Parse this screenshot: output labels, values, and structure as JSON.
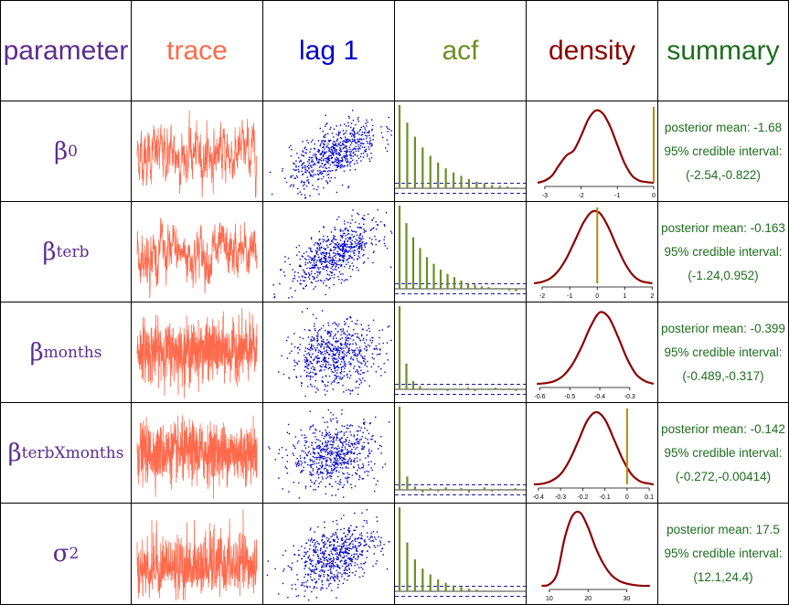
{
  "headers": {
    "parameter": "parameter",
    "trace": "trace",
    "lag": "lag 1",
    "acf": "acf",
    "density": "density",
    "summary": "summary"
  },
  "colors": {
    "parameter": "#5b2c8f",
    "trace": "#ff6a4d",
    "lag": "#0000cc",
    "acf": "#6b8e23",
    "density": "#8b0000",
    "summary": "#1c6e1c",
    "marker": "#b8860b"
  },
  "rows": [
    {
      "symbol": "β",
      "sub": "0",
      "sup": "",
      "mean_label": "posterior mean: -1.68",
      "ci_label": "95% credible interval:",
      "ci_values": "(-2.54,-0.822)"
    },
    {
      "symbol": "β",
      "sub": "terb",
      "sup": "",
      "mean_label": "posterior mean: -0.163",
      "ci_label": "95% credible interval:",
      "ci_values": "(-1.24,0.952)"
    },
    {
      "symbol": "β",
      "sub": "months",
      "sup": "",
      "mean_label": "posterior mean: -0.399",
      "ci_label": "95% credible interval:",
      "ci_values": "(-0.489,-0.317)"
    },
    {
      "symbol": "β",
      "sub": "terbXmonths",
      "sup": "",
      "mean_label": "posterior mean: -0.142",
      "ci_label": "95% credible interval:",
      "ci_values": "(-0.272,-0.00414)"
    },
    {
      "symbol": "σ",
      "sub": "",
      "sup": "2",
      "mean_label": "posterior mean: 17.5",
      "ci_label": "95% credible interval:",
      "ci_values": "(12.1,24.4)"
    }
  ],
  "chart_data": [
    {
      "type": "line",
      "panel": "trace",
      "param": "beta0",
      "trace_style": "dense noisy chain",
      "mean": -1.68,
      "ylim": [
        -3.2,
        0
      ]
    },
    {
      "type": "line",
      "panel": "trace",
      "param": "beta_terb",
      "trace_style": "dense noisy chain",
      "mean": -0.163,
      "ylim": [
        -2.2,
        2
      ]
    },
    {
      "type": "line",
      "panel": "trace",
      "param": "beta_months",
      "trace_style": "dense noisy chain",
      "mean": -0.399,
      "ylim": [
        -0.62,
        -0.2
      ]
    },
    {
      "type": "line",
      "panel": "trace",
      "param": "beta_terbXmonths",
      "trace_style": "dense noisy chain",
      "mean": -0.142,
      "ylim": [
        -0.42,
        0.12
      ]
    },
    {
      "type": "line",
      "panel": "trace",
      "param": "sigma2",
      "trace_style": "dense noisy chain",
      "mean": 17.5,
      "ylim": [
        8,
        36
      ]
    },
    {
      "type": "scatter",
      "panel": "lag 1",
      "param": "beta0",
      "correlation": 0.62
    },
    {
      "type": "scatter",
      "panel": "lag 1",
      "param": "beta_terb",
      "correlation": 0.62
    },
    {
      "type": "scatter",
      "panel": "lag 1",
      "param": "beta_months",
      "correlation": 0.15
    },
    {
      "type": "scatter",
      "panel": "lag 1",
      "param": "beta_terbXmonths",
      "correlation": 0.12
    },
    {
      "type": "scatter",
      "panel": "lag 1",
      "param": "sigma2",
      "correlation": 0.45
    },
    {
      "type": "bar",
      "panel": "acf",
      "param": "beta0",
      "values": [
        1,
        0.79,
        0.62,
        0.49,
        0.39,
        0.31,
        0.24,
        0.19,
        0.15,
        0.11,
        0.08,
        0.06,
        0.04,
        0.03,
        0.02,
        0.01
      ],
      "band": 0.06
    },
    {
      "type": "bar",
      "panel": "acf",
      "param": "beta_terb",
      "values": [
        1,
        0.79,
        0.62,
        0.49,
        0.38,
        0.3,
        0.23,
        0.18,
        0.14,
        0.1,
        0.07,
        0.05,
        0.03,
        0.02,
        0.01,
        -0.01,
        -0.02,
        -0.03
      ],
      "band": 0.06
    },
    {
      "type": "bar",
      "panel": "acf",
      "param": "beta_months",
      "values": [
        1,
        0.31,
        0.1,
        0.04,
        0.01,
        -0.01,
        0.01,
        -0.02,
        0.01,
        -0.01,
        0.02,
        -0.02,
        0.01,
        -0.01,
        0.02,
        -0.01,
        0.01,
        -0.02
      ],
      "band": 0.06
    },
    {
      "type": "bar",
      "panel": "acf",
      "param": "beta_terbXmonths",
      "values": [
        1,
        0.16,
        0.04,
        -0.03,
        0.02,
        -0.02,
        0.03,
        -0.01,
        0.02,
        -0.03,
        0.01,
        0.03,
        -0.02,
        0.01,
        -0.01,
        0.02
      ],
      "band": 0.06
    },
    {
      "type": "bar",
      "panel": "acf",
      "param": "sigma2",
      "values": [
        1,
        0.58,
        0.38,
        0.27,
        0.2,
        0.14,
        0.1,
        0.07,
        0.05,
        0.03,
        0.02,
        0.01
      ],
      "band": 0.06
    },
    {
      "type": "line",
      "panel": "density",
      "param": "beta0",
      "x": [
        -3.2,
        -3.0,
        -2.8,
        -2.6,
        -2.4,
        -2.2,
        -2.0,
        -1.8,
        -1.6,
        -1.4,
        -1.2,
        -1.0,
        -0.8,
        -0.6,
        -0.4,
        -0.2,
        0.0
      ],
      "y": [
        0.0,
        0.03,
        0.1,
        0.25,
        0.38,
        0.45,
        0.65,
        0.88,
        1.0,
        0.96,
        0.78,
        0.52,
        0.27,
        0.1,
        0.03,
        0.01,
        0.0
      ],
      "xlim": [
        -3.3,
        0
      ],
      "ticks": [
        -3,
        -2,
        -1,
        0
      ],
      "marker": 0
    },
    {
      "type": "line",
      "panel": "density",
      "param": "beta_terb",
      "x": [
        -2.3,
        -2.0,
        -1.7,
        -1.4,
        -1.1,
        -0.8,
        -0.5,
        -0.2,
        0.1,
        0.4,
        0.7,
        1.0,
        1.3,
        1.6,
        2.0
      ],
      "y": [
        0.0,
        0.02,
        0.07,
        0.18,
        0.36,
        0.6,
        0.84,
        0.99,
        0.97,
        0.78,
        0.52,
        0.28,
        0.11,
        0.03,
        0.0
      ],
      "xlim": [
        -2.3,
        2.05
      ],
      "ticks": [
        -2,
        -1,
        0,
        1,
        2
      ],
      "marker": 0
    },
    {
      "type": "line",
      "panel": "density",
      "param": "beta_months",
      "x": [
        -0.61,
        -0.58,
        -0.55,
        -0.52,
        -0.49,
        -0.46,
        -0.43,
        -0.4,
        -0.37,
        -0.34,
        -0.31,
        -0.28,
        -0.25,
        -0.22
      ],
      "y": [
        0.0,
        0.01,
        0.04,
        0.12,
        0.28,
        0.52,
        0.8,
        0.99,
        0.92,
        0.66,
        0.36,
        0.14,
        0.04,
        0.0
      ],
      "xlim": [
        -0.62,
        -0.22
      ],
      "ticks": [
        -0.6,
        -0.5,
        -0.4,
        -0.3
      ],
      "marker": null
    },
    {
      "type": "line",
      "panel": "density",
      "param": "beta_terbXmonths",
      "x": [
        -0.42,
        -0.38,
        -0.34,
        -0.3,
        -0.26,
        -0.22,
        -0.18,
        -0.14,
        -0.1,
        -0.06,
        -0.02,
        0.02,
        0.06,
        0.1,
        0.12
      ],
      "y": [
        0.0,
        0.01,
        0.05,
        0.14,
        0.33,
        0.6,
        0.88,
        1.0,
        0.9,
        0.63,
        0.35,
        0.14,
        0.04,
        0.01,
        0.0
      ],
      "xlim": [
        -0.42,
        0.12
      ],
      "ticks": [
        -0.4,
        -0.3,
        -0.2,
        -0.1,
        0,
        0.1
      ],
      "marker": 0
    },
    {
      "type": "line",
      "panel": "density",
      "param": "sigma2",
      "x": [
        8,
        10,
        12,
        14,
        16,
        18,
        20,
        22,
        24,
        26,
        28,
        30,
        32,
        34,
        36
      ],
      "y": [
        0.0,
        0.02,
        0.17,
        0.66,
        0.96,
        1.0,
        0.8,
        0.52,
        0.3,
        0.15,
        0.07,
        0.03,
        0.01,
        0.0,
        0.0
      ],
      "xlim": [
        6,
        37
      ],
      "ticks": [
        10,
        20,
        30
      ],
      "marker": null
    }
  ]
}
